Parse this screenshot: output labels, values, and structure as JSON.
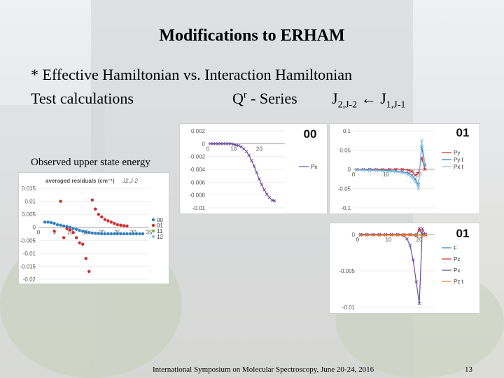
{
  "slide": {
    "title": "Modifications to ERHAM",
    "line1": "* Effective Hamiltonian vs.  Interaction Hamiltonian",
    "test_label": "Test calculations",
    "series_q": "Q",
    "series_r": "r",
    "series_rest": " - Series",
    "j_upper_main": "J",
    "j_upper_sub": "2,J-2",
    "arrow": " ← ",
    "j_lower_main": "J",
    "j_lower_sub": "1,J-1",
    "observed": "Observed upper state energy",
    "footer": "International Symposium on Molecular Spectroscopy, June 20-24, 2016",
    "page_number": "13"
  },
  "colors": {
    "red": "#d22b2b",
    "blue": "#2f7fbf",
    "green": "#7ab648",
    "purple": "#6a4c9c",
    "orange": "#e8832a",
    "lightblue": "#8cc4e8"
  },
  "chart_data": [
    {
      "type": "scatter",
      "title": "averaged residuals (cm⁻¹)",
      "subtitle": "J2,J-2",
      "ylim": [
        -0.02,
        0.015
      ],
      "yticks": [
        "0.015",
        "0.01",
        "0.005",
        "0",
        "-0.005",
        "-0.01",
        "-0.015",
        "-0.02"
      ],
      "xticks": [
        "0",
        "5",
        "10",
        "15",
        "20",
        "25",
        "30",
        "35"
      ],
      "xlim": [
        0,
        35
      ],
      "legend": [
        "00",
        "01",
        "11",
        "12"
      ],
      "series": [
        {
          "name": "00",
          "color": "#2f7fbf",
          "points": [
            [
              2,
              0.002
            ],
            [
              3,
              0.002
            ],
            [
              4,
              0.0018
            ],
            [
              5,
              0.0015
            ],
            [
              6,
              0.001
            ],
            [
              7,
              0.0008
            ],
            [
              8,
              0.0005
            ],
            [
              9,
              0.0003
            ],
            [
              10,
              0.0
            ],
            [
              11,
              -0.0005
            ],
            [
              12,
              -0.0008
            ],
            [
              13,
              -0.0012
            ],
            [
              14,
              -0.0015
            ],
            [
              15,
              -0.0018
            ],
            [
              16,
              -0.002
            ],
            [
              17,
              -0.0022
            ],
            [
              18,
              -0.0023
            ],
            [
              19,
              -0.0024
            ],
            [
              20,
              -0.0025
            ],
            [
              21,
              -0.0025
            ],
            [
              22,
              -0.0025
            ],
            [
              23,
              -0.0025
            ],
            [
              24,
              -0.0025
            ],
            [
              25,
              -0.0025
            ],
            [
              26,
              -0.0025
            ],
            [
              27,
              -0.0025
            ],
            [
              28,
              -0.0025
            ],
            [
              29,
              -0.0025
            ],
            [
              30,
              -0.0025
            ],
            [
              31,
              -0.0025
            ],
            [
              32,
              -0.0025
            ],
            [
              33,
              -0.0025
            ]
          ]
        },
        {
          "name": "01",
          "color": "#d22b2b",
          "points": [
            [
              5,
              -0.0015
            ],
            [
              7,
              0.01
            ],
            [
              8,
              -0.004
            ],
            [
              9,
              -0.0005
            ],
            [
              10,
              -0.001
            ],
            [
              11,
              -0.002
            ],
            [
              12,
              -0.004
            ],
            [
              13,
              -0.006
            ],
            [
              14,
              -0.0065
            ],
            [
              15,
              -0.012
            ],
            [
              16,
              -0.017
            ],
            [
              17,
              0.0105
            ],
            [
              18,
              0.007
            ],
            [
              19,
              0.005
            ],
            [
              20,
              0.004
            ],
            [
              21,
              0.003
            ],
            [
              22,
              0.0025
            ],
            [
              23,
              0.002
            ],
            [
              24,
              0.0015
            ],
            [
              25,
              0.001
            ],
            [
              26,
              0.0008
            ],
            [
              27,
              0.0006
            ],
            [
              28,
              0.0005
            ]
          ]
        },
        {
          "name": "11",
          "color": "#7ab648",
          "points": []
        },
        {
          "name": "12",
          "color": "#8cc4e8",
          "points": []
        }
      ]
    },
    {
      "type": "line",
      "corner_label": "00",
      "ylim": [
        -0.01,
        0.002
      ],
      "yticks": [
        "0.002",
        "0",
        "-0.002",
        "-0.004",
        "-0.006",
        "-0.008",
        "-0.01"
      ],
      "xticks": [
        "0",
        "10",
        "20"
      ],
      "xlim": [
        0,
        30
      ],
      "series": [
        {
          "name": "Px",
          "color": "#6a4c9c",
          "points": [
            [
              1,
              0.0
            ],
            [
              2,
              0.0
            ],
            [
              3,
              0.0
            ],
            [
              4,
              0.0
            ],
            [
              5,
              0.0
            ],
            [
              6,
              0.0
            ],
            [
              7,
              0.0
            ],
            [
              8,
              0.0
            ],
            [
              9,
              0.0
            ],
            [
              10,
              -0.0001
            ],
            [
              11,
              -0.0002
            ],
            [
              12,
              -0.0003
            ],
            [
              13,
              -0.0005
            ],
            [
              14,
              -0.0008
            ],
            [
              15,
              -0.0012
            ],
            [
              16,
              -0.0018
            ],
            [
              17,
              -0.0026
            ],
            [
              18,
              -0.0035
            ],
            [
              19,
              -0.0045
            ],
            [
              20,
              -0.0055
            ],
            [
              21,
              -0.0064
            ],
            [
              22,
              -0.0072
            ],
            [
              23,
              -0.0079
            ],
            [
              24,
              -0.0084
            ],
            [
              25,
              -0.0088
            ],
            [
              26,
              -0.0089
            ]
          ]
        }
      ]
    },
    {
      "type": "line",
      "corner_label": "01",
      "ylim": [
        -0.1,
        0.1
      ],
      "yticks": [
        "0.1",
        "0.05",
        "0",
        "-0.05",
        "-0.1"
      ],
      "xticks": [
        "0",
        "10",
        "20"
      ],
      "xlim": [
        0,
        25
      ],
      "series": [
        {
          "name": "Py",
          "color": "#d22b2b",
          "points": [
            [
              1,
              0.0
            ],
            [
              3,
              0.0
            ],
            [
              5,
              0.0
            ],
            [
              7,
              0.0
            ],
            [
              9,
              0.0
            ],
            [
              11,
              0.0
            ],
            [
              13,
              0.0
            ],
            [
              15,
              0.0
            ],
            [
              17,
              -0.002
            ],
            [
              18,
              -0.005
            ],
            [
              19,
              -0.015
            ],
            [
              20,
              -0.01
            ],
            [
              21,
              0.03
            ],
            [
              22,
              0.0
            ]
          ]
        },
        {
          "name": "Py t",
          "color": "#2f7fbf",
          "points": [
            [
              1,
              -0.001
            ],
            [
              3,
              -0.001
            ],
            [
              5,
              -0.001
            ],
            [
              7,
              -0.002
            ],
            [
              9,
              -0.002
            ],
            [
              11,
              -0.003
            ],
            [
              13,
              -0.004
            ],
            [
              15,
              -0.006
            ],
            [
              17,
              -0.01
            ],
            [
              18,
              -0.015
            ],
            [
              19,
              -0.025
            ],
            [
              20,
              -0.04
            ],
            [
              21,
              0.06
            ],
            [
              22,
              0.01
            ]
          ]
        },
        {
          "name": "Px t",
          "color": "#8cc4e8",
          "points": [
            [
              1,
              -0.002
            ],
            [
              3,
              -0.002
            ],
            [
              5,
              -0.003
            ],
            [
              7,
              -0.003
            ],
            [
              9,
              -0.004
            ],
            [
              11,
              -0.005
            ],
            [
              13,
              -0.006
            ],
            [
              15,
              -0.009
            ],
            [
              17,
              -0.015
            ],
            [
              18,
              -0.022
            ],
            [
              19,
              -0.032
            ],
            [
              20,
              -0.05
            ],
            [
              21,
              0.075
            ],
            [
              22,
              0.015
            ]
          ]
        }
      ]
    },
    {
      "type": "line",
      "corner_label": "01",
      "ylim": [
        -0.01,
        0.0
      ],
      "yticks": [
        "0",
        "-0.005",
        "-0.01"
      ],
      "xticks": [
        "0",
        "10",
        "20"
      ],
      "xlim": [
        0,
        25
      ],
      "series": [
        {
          "name": "F",
          "color": "#2f7fbf",
          "points": [
            [
              1,
              0.0
            ],
            [
              3,
              0.0
            ],
            [
              5,
              0.0
            ],
            [
              7,
              0.0
            ],
            [
              9,
              0.0
            ],
            [
              11,
              0.0
            ],
            [
              13,
              0.0
            ],
            [
              15,
              0.0
            ],
            [
              17,
              0.0
            ],
            [
              19,
              0.0
            ],
            [
              20,
              0.0006
            ],
            [
              21,
              0.0
            ],
            [
              22,
              0.0
            ]
          ]
        },
        {
          "name": "Pz",
          "color": "#d22b2b",
          "points": [
            [
              1,
              0.0
            ],
            [
              3,
              0.0
            ],
            [
              5,
              0.0
            ],
            [
              7,
              0.0
            ],
            [
              9,
              0.0
            ],
            [
              11,
              0.0
            ],
            [
              13,
              0.0
            ],
            [
              15,
              0.0
            ],
            [
              17,
              0.0
            ],
            [
              19,
              -0.0002
            ],
            [
              20,
              0.0008
            ],
            [
              21,
              0.0
            ],
            [
              22,
              0.0
            ]
          ]
        },
        {
          "name": "Px",
          "color": "#6a4c9c",
          "points": [
            [
              1,
              0.0
            ],
            [
              3,
              0.0
            ],
            [
              5,
              0.0
            ],
            [
              7,
              0.0
            ],
            [
              9,
              0.0
            ],
            [
              11,
              0.0
            ],
            [
              13,
              0.0
            ],
            [
              15,
              -0.0002
            ],
            [
              16,
              -0.0006
            ],
            [
              17,
              -0.0015
            ],
            [
              18,
              -0.0035
            ],
            [
              19,
              -0.0065
            ],
            [
              20,
              -0.0095
            ],
            [
              21,
              0.0008
            ],
            [
              22,
              0.0
            ]
          ]
        },
        {
          "name": "Pz t",
          "color": "#e8832a",
          "points": [
            [
              1,
              -0.0001
            ],
            [
              3,
              -0.0001
            ],
            [
              5,
              -0.0001
            ],
            [
              7,
              -0.0001
            ],
            [
              9,
              -0.0001
            ],
            [
              11,
              -0.0001
            ],
            [
              13,
              -0.0001
            ],
            [
              15,
              -0.0001
            ],
            [
              17,
              -0.0001
            ],
            [
              19,
              -0.0001
            ],
            [
              21,
              -0.0001
            ],
            [
              22,
              -0.0001
            ]
          ]
        }
      ]
    }
  ]
}
